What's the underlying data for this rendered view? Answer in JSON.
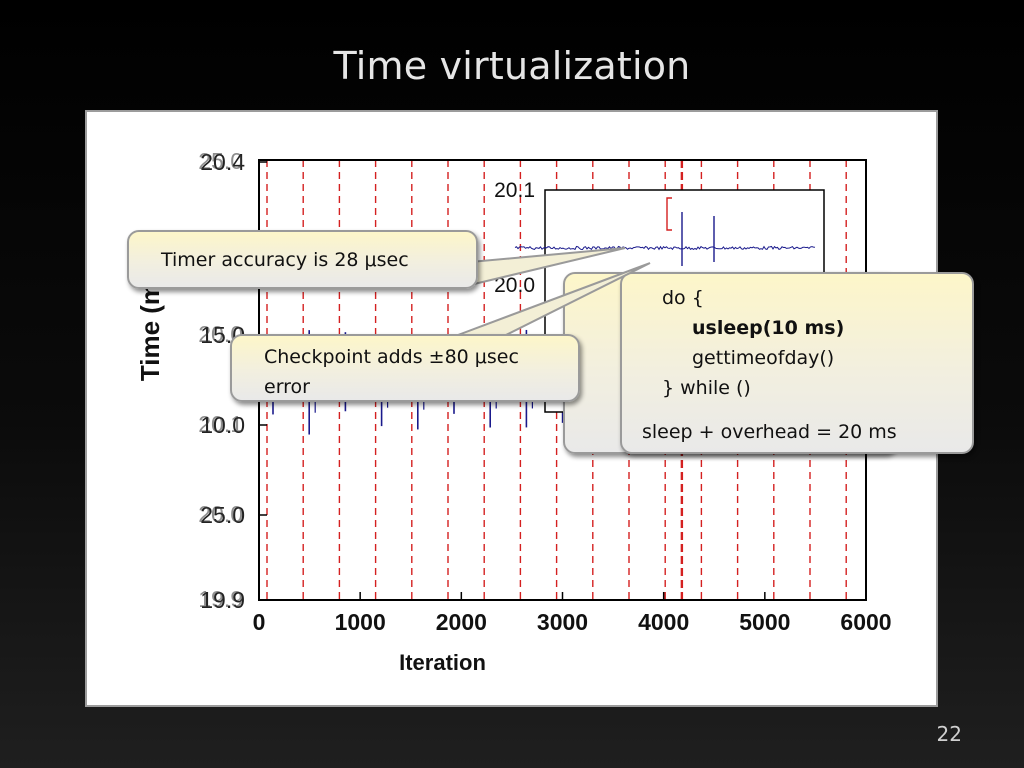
{
  "slide": {
    "title": "Time virtualization",
    "number": "22"
  },
  "chart_data": [
    {
      "type": "line",
      "title": "",
      "xlabel": "Iteration",
      "ylabel": "Time (ms)",
      "xlim": [
        0,
        6000
      ],
      "ylim": [
        19.9,
        20.1
      ],
      "x_ticks": [
        "0",
        "1000",
        "2000",
        "3000",
        "4000",
        "5000",
        "6000"
      ],
      "y_ticks": [
        "19.9",
        "20.0",
        "20.1"
      ],
      "y_ticks_ghost": [
        "20.4",
        "15.0",
        "10.0",
        "25.0"
      ],
      "baseline_value": 20.0,
      "series": [
        {
          "values_description_none": null,
          "color": "#1a1a8c",
          "typical_value": 20.0,
          "spike_range": [
            19.96,
            20.04
          ]
        }
      ],
      "checkpoint_marker_color": "#d42020",
      "grid": false,
      "legend": "none"
    },
    {
      "type": "line",
      "title": "",
      "ylim": [
        20.0,
        20.1
      ],
      "y_ticks": [
        "20.1",
        "20.0"
      ],
      "color": "#1a1a8c"
    }
  ],
  "callouts": {
    "timer": {
      "text": "Timer accuracy is 28 μsec"
    },
    "checkpoint": {
      "text": "Checkpoint adds ±80 μsec error"
    },
    "code": {
      "lines": [
        "do {",
        "usleep(10 ms)",
        "gettimeofday()",
        "} while ()"
      ],
      "footer": "sleep + overhead = 20 ms"
    }
  },
  "colors": {
    "series": "#1a1a8c",
    "checkpoint": "#d42020",
    "callout_fill": "#fdf6c9",
    "background": "#000000"
  }
}
